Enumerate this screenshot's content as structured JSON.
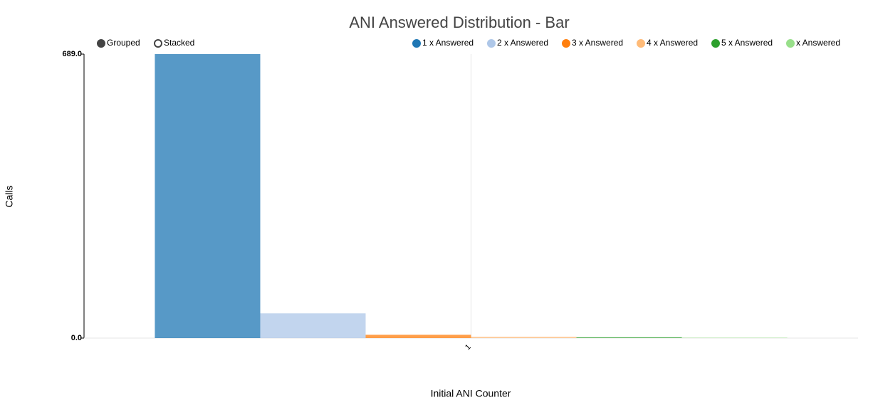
{
  "chart_data": {
    "type": "bar",
    "title": "ANI Answered Distribution - Bar",
    "controls": [
      "Grouped",
      "Stacked"
    ],
    "control_selected": "Grouped",
    "x_label": "Initial ANI Counter",
    "y_label": "Calls",
    "categories": [
      "1"
    ],
    "series": [
      {
        "name": "1 x Answered",
        "color": "#1f77b4",
        "values": [
          689
        ]
      },
      {
        "name": "2 x Answered",
        "color": "#aec7e8",
        "values": [
          60
        ]
      },
      {
        "name": "3 x Answered",
        "color": "#ff7f0e",
        "values": [
          8
        ]
      },
      {
        "name": "4 x Answered",
        "color": "#ffbb78",
        "values": [
          3
        ]
      },
      {
        "name": "5 x Answered",
        "color": "#2ca02c",
        "values": [
          2
        ]
      },
      {
        "name": "x Answered",
        "color": "#98df8a",
        "values": [
          1
        ]
      }
    ],
    "ylim": [
      0,
      689
    ],
    "yticks": [
      {
        "value": 0,
        "label": "0.0"
      },
      {
        "value": 689,
        "label": "689.0"
      }
    ],
    "legend": "top-right"
  }
}
